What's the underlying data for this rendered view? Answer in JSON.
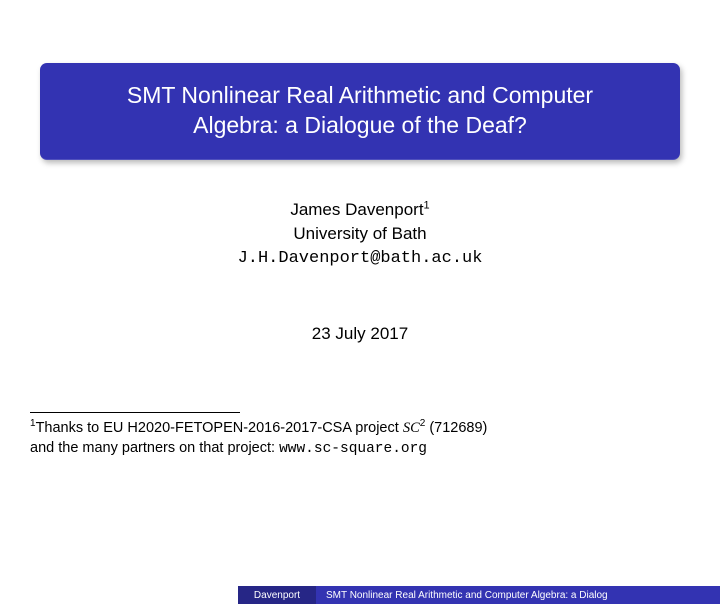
{
  "title": {
    "line1": "SMT Nonlinear Real Arithmetic and Computer",
    "line2": "Algebra: a Dialogue of the Deaf?"
  },
  "author": {
    "name": "James Davenport",
    "affiliation_mark": "1",
    "affiliation": "University of Bath",
    "email": "J.H.Davenport@bath.ac.uk"
  },
  "date": "23 July 2017",
  "footnote": {
    "mark": "1",
    "text_before": "Thanks to EU H2020-FETOPEN-2016-2017-CSA project ",
    "project_symbol": "SC",
    "project_sup": "2",
    "grant": " (712689)",
    "line2_before": "and the many partners on that project: ",
    "url": "www.sc-square.org"
  },
  "footer": {
    "author_short": "Davenport",
    "title_short": "SMT Nonlinear Real Arithmetic and Computer Algebra: a Dialog"
  },
  "colors": {
    "title_bg": "#3333b2",
    "footer_author_bg": "#262686",
    "footer_title_bg": "#3333b2",
    "text_white": "#ffffff"
  }
}
